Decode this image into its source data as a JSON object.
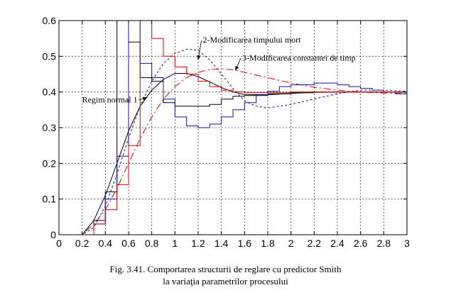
{
  "chart_data": {
    "type": "line",
    "xlim": [
      0,
      3
    ],
    "ylim": [
      0,
      0.6
    ],
    "x_ticks": [
      0,
      0.2,
      0.4,
      0.6,
      0.8,
      1,
      1.2,
      1.4,
      1.6,
      1.8,
      2,
      2.2,
      2.4,
      2.6,
      2.8,
      3
    ],
    "x_tick_labels": [
      "0",
      "0.2",
      "0.4",
      "0.6",
      "0.8",
      "1",
      "1.2",
      "1.4",
      "1.6",
      "1.8",
      "2",
      "2.2",
      "2.4",
      "2.6",
      "2.8",
      "3"
    ],
    "y_ticks": [
      0,
      0.1,
      0.2,
      0.3,
      0.4,
      0.5,
      0.6
    ],
    "y_tick_labels": [
      "0",
      "0.1",
      "0.2",
      "0.3",
      "0.4",
      "0.5",
      "0.6"
    ],
    "grid": true,
    "grid_style": "dotted",
    "colors": {
      "black": "#000000",
      "red": "#e00000",
      "blue": "#1010a0",
      "axes": "#000000"
    },
    "series": [
      {
        "name": "Regim normal 1",
        "color": "#000000",
        "style": "solid",
        "points": [
          [
            0,
            0
          ],
          [
            0.2,
            0
          ],
          [
            0.3,
            0.04
          ],
          [
            0.4,
            0.11
          ],
          [
            0.5,
            0.2
          ],
          [
            0.6,
            0.29
          ],
          [
            0.7,
            0.36
          ],
          [
            0.8,
            0.405
          ],
          [
            0.9,
            0.435
          ],
          [
            1.0,
            0.452
          ],
          [
            1.1,
            0.452
          ],
          [
            1.2,
            0.443
          ],
          [
            1.3,
            0.428
          ],
          [
            1.4,
            0.412
          ],
          [
            1.5,
            0.4
          ],
          [
            1.6,
            0.393
          ],
          [
            1.8,
            0.392
          ],
          [
            2.0,
            0.396
          ],
          [
            2.2,
            0.399
          ],
          [
            2.5,
            0.4
          ],
          [
            3.0,
            0.4
          ]
        ]
      },
      {
        "name": "2-Modificarea timpului mort",
        "color": "#1010a0",
        "style": "dashed",
        "points": [
          [
            0,
            0
          ],
          [
            0.2,
            0
          ],
          [
            0.3,
            0.02
          ],
          [
            0.4,
            0.08
          ],
          [
            0.5,
            0.17
          ],
          [
            0.6,
            0.27
          ],
          [
            0.7,
            0.36
          ],
          [
            0.8,
            0.43
          ],
          [
            0.9,
            0.48
          ],
          [
            1.0,
            0.508
          ],
          [
            1.1,
            0.52
          ],
          [
            1.2,
            0.517
          ],
          [
            1.3,
            0.49
          ],
          [
            1.4,
            0.45
          ],
          [
            1.5,
            0.41
          ],
          [
            1.6,
            0.375
          ],
          [
            1.7,
            0.36
          ],
          [
            1.8,
            0.355
          ],
          [
            2.0,
            0.365
          ],
          [
            2.2,
            0.38
          ],
          [
            2.4,
            0.395
          ],
          [
            2.6,
            0.405
          ],
          [
            2.8,
            0.405
          ],
          [
            3.0,
            0.402
          ]
        ]
      },
      {
        "name": "3-Modificarea constantei de timp",
        "color": "#e00000",
        "style": "dashdot",
        "points": [
          [
            0,
            0
          ],
          [
            0.2,
            0
          ],
          [
            0.3,
            0.03
          ],
          [
            0.4,
            0.07
          ],
          [
            0.5,
            0.13
          ],
          [
            0.6,
            0.2
          ],
          [
            0.7,
            0.27
          ],
          [
            0.8,
            0.33
          ],
          [
            0.9,
            0.38
          ],
          [
            1.0,
            0.415
          ],
          [
            1.1,
            0.44
          ],
          [
            1.2,
            0.455
          ],
          [
            1.3,
            0.463
          ],
          [
            1.4,
            0.465
          ],
          [
            1.5,
            0.462
          ],
          [
            1.6,
            0.455
          ],
          [
            1.8,
            0.44
          ],
          [
            2.0,
            0.425
          ],
          [
            2.2,
            0.413
          ],
          [
            2.4,
            0.405
          ],
          [
            2.6,
            0.4
          ],
          [
            2.8,
            0.397
          ],
          [
            3.0,
            0.396
          ]
        ]
      },
      {
        "name": "",
        "color": "#000000",
        "style": "stairs",
        "points": [
          [
            0,
            0
          ],
          [
            0.2,
            0
          ],
          [
            0.3,
            0.04
          ],
          [
            0.4,
            0.12
          ],
          [
            0.5,
            0.27
          ],
          [
            0.5,
            0.6
          ],
          [
            0.6,
            0.54
          ],
          [
            0.7,
            0.44
          ],
          [
            0.8,
            0.43
          ],
          [
            0.9,
            0.37
          ],
          [
            1.0,
            0.36
          ],
          [
            1.1,
            0.36
          ],
          [
            1.2,
            0.36
          ],
          [
            1.3,
            0.365
          ],
          [
            1.4,
            0.38
          ],
          [
            1.5,
            0.388
          ],
          [
            1.6,
            0.39
          ],
          [
            1.7,
            0.392
          ],
          [
            1.8,
            0.395
          ],
          [
            2.0,
            0.398
          ],
          [
            2.2,
            0.4
          ],
          [
            2.4,
            0.4
          ],
          [
            2.6,
            0.4
          ],
          [
            2.8,
            0.4
          ],
          [
            3.0,
            0.4
          ]
        ]
      },
      {
        "name": "",
        "color": "#1010a0",
        "style": "stairs",
        "points": [
          [
            0,
            0
          ],
          [
            0.2,
            0
          ],
          [
            0.3,
            0.03
          ],
          [
            0.4,
            0.1
          ],
          [
            0.5,
            0.22
          ],
          [
            0.6,
            0.36
          ],
          [
            0.6,
            0.6
          ],
          [
            0.7,
            0.48
          ],
          [
            0.8,
            0.44
          ],
          [
            0.9,
            0.38
          ],
          [
            1.0,
            0.33
          ],
          [
            1.1,
            0.305
          ],
          [
            1.2,
            0.3
          ],
          [
            1.3,
            0.31
          ],
          [
            1.4,
            0.33
          ],
          [
            1.5,
            0.35
          ],
          [
            1.6,
            0.37
          ],
          [
            1.7,
            0.39
          ],
          [
            1.8,
            0.402
          ],
          [
            1.9,
            0.415
          ],
          [
            2.0,
            0.42
          ],
          [
            2.1,
            0.42
          ],
          [
            2.2,
            0.425
          ],
          [
            2.3,
            0.425
          ],
          [
            2.4,
            0.42
          ],
          [
            2.5,
            0.415
          ],
          [
            2.6,
            0.41
          ],
          [
            2.7,
            0.405
          ],
          [
            2.8,
            0.4
          ],
          [
            2.9,
            0.395
          ],
          [
            3.0,
            0.395
          ]
        ]
      },
      {
        "name": "",
        "color": "#e00000",
        "style": "stairs",
        "points": [
          [
            0,
            0
          ],
          [
            0.2,
            0
          ],
          [
            0.3,
            0.03
          ],
          [
            0.4,
            0.07
          ],
          [
            0.5,
            0.14
          ],
          [
            0.6,
            0.25
          ],
          [
            0.7,
            0.39
          ],
          [
            0.7,
            0.6
          ],
          [
            0.8,
            0.55
          ],
          [
            0.9,
            0.5
          ],
          [
            1.0,
            0.47
          ],
          [
            1.1,
            0.45
          ],
          [
            1.2,
            0.43
          ],
          [
            1.3,
            0.415
          ],
          [
            1.4,
            0.405
          ],
          [
            1.5,
            0.4
          ],
          [
            1.6,
            0.398
          ],
          [
            1.8,
            0.398
          ],
          [
            2.0,
            0.4
          ],
          [
            2.2,
            0.4
          ],
          [
            2.4,
            0.4
          ],
          [
            2.6,
            0.4
          ],
          [
            2.8,
            0.4
          ],
          [
            3.0,
            0.4
          ]
        ]
      }
    ],
    "annotations": [
      {
        "id": "label-modificarea-timpului-mort",
        "text": "2-Modificarea timpului mort",
        "x": 1.24,
        "y": 0.538,
        "arrow_to": [
          1.2,
          0.49
        ]
      },
      {
        "id": "label-modificarea-constantei",
        "text": "3-Modificarea constantei de timp",
        "x": 1.58,
        "y": 0.488,
        "arrow_to": [
          1.52,
          0.46
        ]
      },
      {
        "id": "label-regim-normal",
        "text": "Regim normal 1",
        "x": 0.2,
        "y": 0.371,
        "arrow_to": [
          0.76,
          0.385
        ]
      }
    ]
  },
  "caption": {
    "line1": "Fig. 3.41.  Comportarea structurii de reglare cu predictor Smith",
    "line2": "la variaţia parametrilor procesului"
  }
}
